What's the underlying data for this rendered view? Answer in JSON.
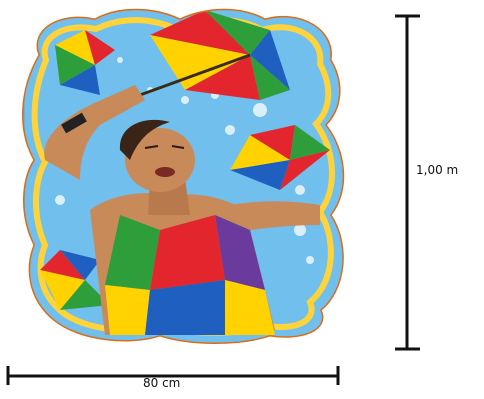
{
  "dimensions": {
    "height_label": "1,00 m",
    "width_label": "80 cm"
  },
  "colors": {
    "background": "#ffffff",
    "dimension_lines": "#111111",
    "frame_outer": "#f08a1c",
    "frame_inner": "#ffd43b",
    "sky": "#5fb4e8",
    "umbrella_red": "#e3262d",
    "umbrella_green": "#2e9e3a",
    "umbrella_yellow": "#ffd200",
    "umbrella_blue": "#1f5fbf",
    "shirt_purple": "#6a3a9c"
  },
  "illustration": {
    "icons": [
      "frevo-umbrella-icon",
      "dancer-figure",
      "dimension-arrow-icon"
    ]
  }
}
